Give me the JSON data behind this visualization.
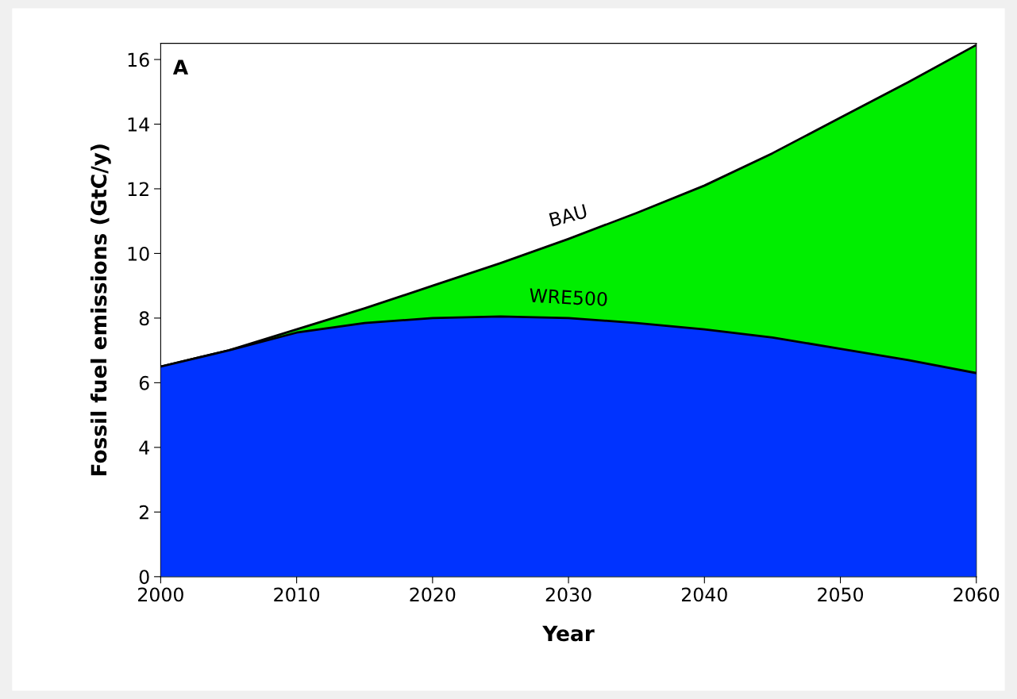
{
  "chart_data": {
    "type": "area",
    "xlabel": "Year",
    "ylabel": "Fossil fuel emissions (GtC/y)",
    "annotations": [
      "A"
    ],
    "x": [
      2000,
      2005,
      2010,
      2015,
      2020,
      2025,
      2030,
      2035,
      2040,
      2045,
      2050,
      2055,
      2060
    ],
    "series": [
      {
        "name": "BAU",
        "color": "#00ee00",
        "values": [
          6.5,
          7.0,
          7.65,
          8.3,
          9.0,
          9.7,
          10.45,
          11.25,
          12.1,
          13.1,
          14.2,
          15.3,
          16.45
        ]
      },
      {
        "name": "WRE500",
        "color": "#0033ff",
        "values": [
          6.5,
          7.0,
          7.55,
          7.85,
          8.0,
          8.05,
          8.0,
          7.85,
          7.65,
          7.4,
          7.05,
          6.7,
          6.3
        ]
      }
    ],
    "xlim": [
      2000,
      2060
    ],
    "ylim": [
      0,
      16.5
    ],
    "xticks": [
      2000,
      2010,
      2020,
      2030,
      2040,
      2050,
      2060
    ],
    "yticks": [
      0,
      2,
      4,
      6,
      8,
      10,
      12,
      14,
      16
    ],
    "grid": false,
    "legend": false
  }
}
